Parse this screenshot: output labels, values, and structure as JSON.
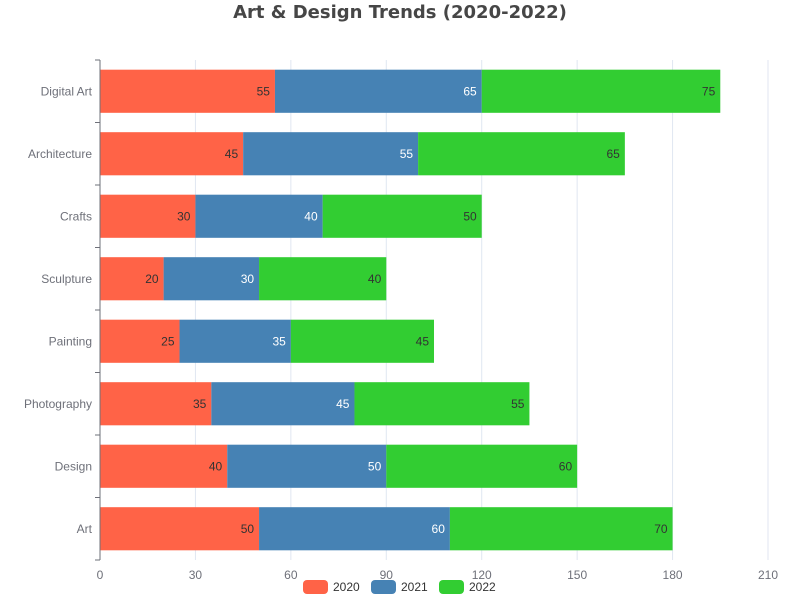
{
  "chart_data": {
    "type": "bar",
    "orientation": "horizontal",
    "stacked": true,
    "title": "Art & Design Trends (2020-2022)",
    "categories": [
      "Art",
      "Design",
      "Photography",
      "Painting",
      "Sculpture",
      "Crafts",
      "Architecture",
      "Digital Art"
    ],
    "series": [
      {
        "name": "2020",
        "color": "#FF6347",
        "label_color": "#333333",
        "values": [
          50,
          40,
          35,
          25,
          20,
          30,
          45,
          55
        ]
      },
      {
        "name": "2021",
        "color": "#4682B4",
        "label_color": "#ffffff",
        "values": [
          60,
          50,
          45,
          35,
          30,
          40,
          55,
          65
        ]
      },
      {
        "name": "2022",
        "color": "#32CD32",
        "label_color": "#333333",
        "values": [
          70,
          60,
          55,
          45,
          40,
          50,
          65,
          75
        ]
      }
    ],
    "x_ticks": [
      0,
      30,
      60,
      90,
      120,
      150,
      180,
      210
    ],
    "xlim": [
      0,
      210
    ],
    "grid": "vertical",
    "legend_position": "bottom-center",
    "data_labels": "inside-end"
  }
}
